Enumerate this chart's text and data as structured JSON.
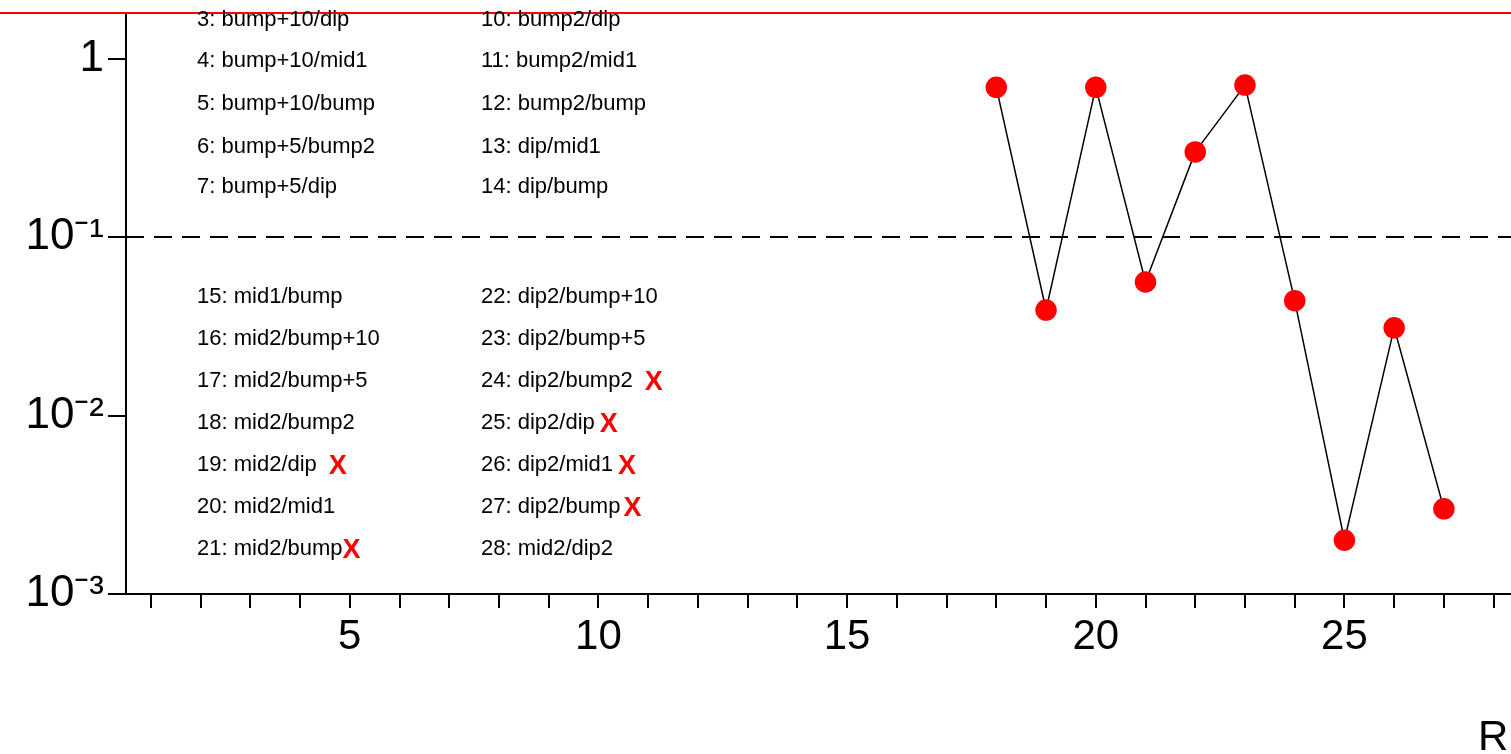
{
  "chart_data": {
    "type": "line",
    "xlabel": "R",
    "log": "y",
    "marker": "circle",
    "line_style": "solid",
    "grid": false,
    "legend": false,
    "xlim": [
      0.5,
      28.5
    ],
    "ylim": [
      0.001,
      1.8
    ],
    "xticks": [
      {
        "value": 1,
        "label": null
      },
      {
        "value": 2,
        "label": null
      },
      {
        "value": 3,
        "label": null
      },
      {
        "value": 4,
        "label": null
      },
      5,
      {
        "value": 6,
        "label": null
      },
      {
        "value": 7,
        "label": null
      },
      {
        "value": 8,
        "label": null
      },
      {
        "value": 9,
        "label": null
      },
      10,
      {
        "value": 11,
        "label": null
      },
      {
        "value": 12,
        "label": null
      },
      {
        "value": 13,
        "label": null
      },
      {
        "value": 14,
        "label": null
      },
      15,
      {
        "value": 16,
        "label": null
      },
      {
        "value": 17,
        "label": null
      },
      {
        "value": 18,
        "label": null
      },
      {
        "value": 19,
        "label": null
      },
      20,
      {
        "value": 21,
        "label": null
      },
      {
        "value": 22,
        "label": null
      },
      {
        "value": 23,
        "label": null
      },
      {
        "value": 24,
        "label": null
      },
      25,
      {
        "value": 26,
        "label": null
      },
      {
        "value": 27,
        "label": null
      },
      {
        "value": 28,
        "label": null
      }
    ],
    "yticks": [
      {
        "value": 0.001,
        "label": "10⁻³"
      },
      {
        "value": 0.01,
        "label": "10⁻²"
      },
      {
        "value": 0.1,
        "label": "10⁻¹"
      },
      1
    ],
    "x": [
      18,
      19,
      20,
      21,
      22,
      23,
      24,
      25,
      26,
      27
    ],
    "series": [
      {
        "color": "#ff0000",
        "values": [
          0.69,
          0.039,
          0.69,
          0.056,
          0.3,
          0.71,
          0.044,
          0.002,
          0.031,
          0.003
        ]
      }
    ],
    "ref_lines": [
      {
        "axis": "y",
        "value": 0.1,
        "line_style": "dashed",
        "color": "#000000"
      },
      {
        "axis": "y",
        "value": 1.8,
        "color": "#ff0000",
        "line_style": "solid"
      }
    ],
    "annotations": [
      "3: bump+10/dip",
      "4: bump+10/mid1",
      "5: bump+10/bump",
      "6: bump+5/bump2",
      "7: bump+5/dip",
      "10: bump2/dip",
      "11: bump2/mid1",
      "12: bump2/bump",
      "13: dip/mid1",
      "14: dip/bump",
      "15: mid1/bump",
      "16: mid2/bump+10",
      "17: mid2/bump+5",
      "18: mid2/bump2",
      "19: mid2/dip",
      "20: mid2/mid1",
      "21: mid2/bump",
      "22: dip2/bump+10",
      "23: dip2/bump+5",
      "24: dip2/bump2",
      "25: dip2/dip",
      "26: dip2/mid1",
      "27: dip2/bump",
      "28: mid2/dip2",
      "X",
      "X",
      "X",
      "X",
      "X",
      "X"
    ]
  }
}
